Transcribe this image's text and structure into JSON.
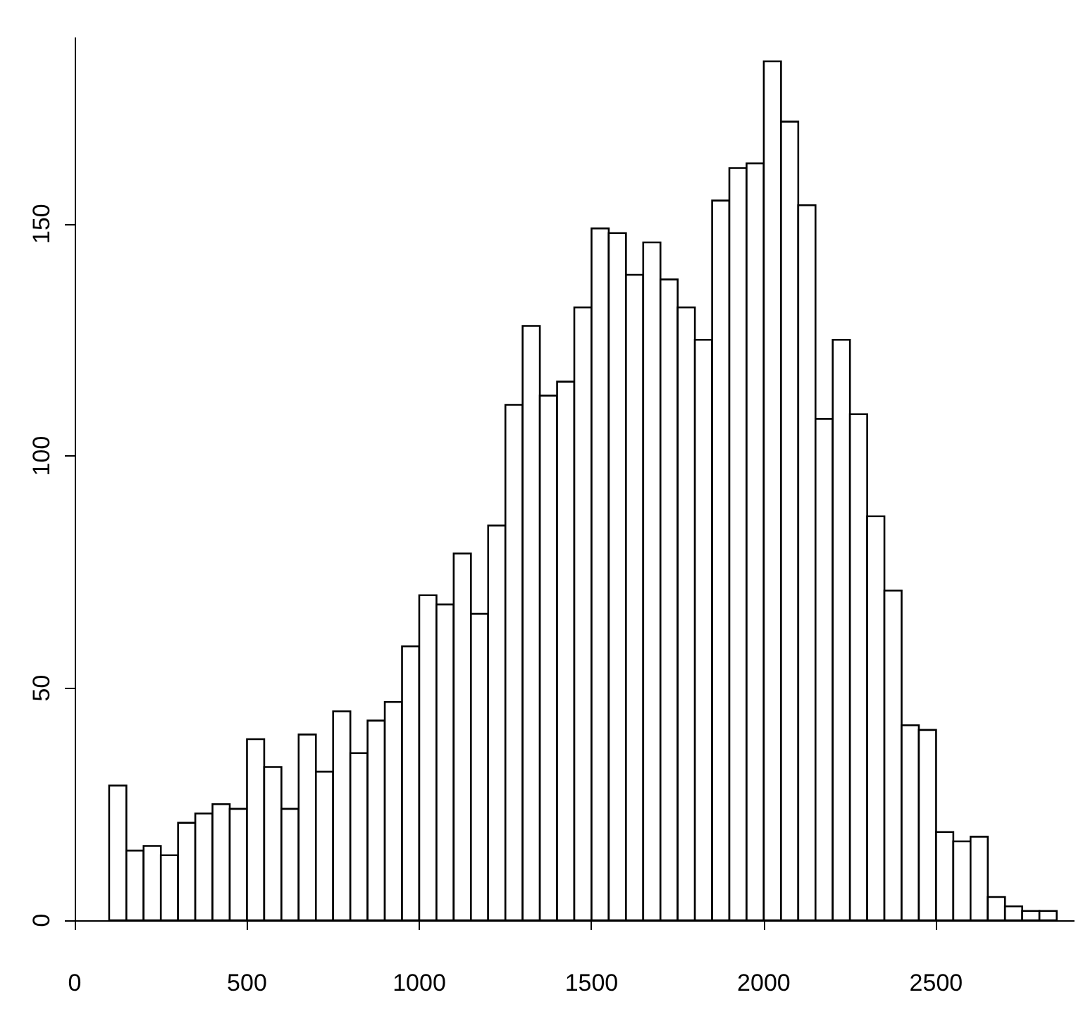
{
  "chart_data": {
    "type": "histogram",
    "bins": [
      100,
      150,
      200,
      250,
      300,
      350,
      400,
      450,
      500,
      550,
      600,
      650,
      700,
      750,
      800,
      850,
      900,
      950,
      1000,
      1050,
      1100,
      1150,
      1200,
      1250,
      1300,
      1350,
      1400,
      1450,
      1500,
      1550,
      1600,
      1650,
      1700,
      1750,
      1800,
      1850,
      1900,
      1950,
      2000,
      2050,
      2100,
      2150,
      2200,
      2250,
      2300,
      2350,
      2400,
      2450,
      2500,
      2550,
      2600,
      2650,
      2700,
      2750,
      2800,
      2850
    ],
    "values": [
      29,
      15,
      16,
      14,
      21,
      23,
      25,
      24,
      39,
      33,
      24,
      40,
      32,
      45,
      36,
      43,
      47,
      59,
      70,
      68,
      79,
      66,
      85,
      111,
      128,
      113,
      116,
      132,
      149,
      148,
      139,
      146,
      138,
      132,
      125,
      155,
      162,
      163,
      185,
      172,
      154,
      108,
      125,
      109,
      87,
      71,
      42,
      41,
      19,
      17,
      18,
      5,
      3,
      2,
      2
    ],
    "color": "#ffffff",
    "xlim": [
      0,
      2900
    ],
    "xticks": [
      0,
      500,
      1000,
      1500,
      2000,
      2500
    ],
    "ylim": [
      0,
      190
    ],
    "yticks": [
      0,
      50,
      100,
      150
    ],
    "grid": false
  }
}
